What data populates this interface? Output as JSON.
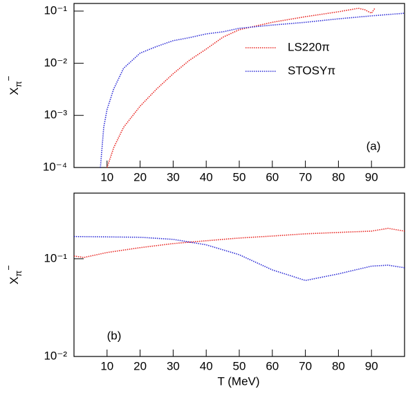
{
  "chart_data": [
    {
      "type": "line",
      "panel_label": "(a)",
      "log_y": true,
      "y_label": {
        "base": "X",
        "sub": "π",
        "sup": "−"
      },
      "xlim": [
        0,
        100
      ],
      "xticks": [
        10,
        20,
        30,
        40,
        50,
        60,
        70,
        80,
        90
      ],
      "ylim": [
        0.0001,
        0.14
      ],
      "yticks": [
        {
          "value": 0.1,
          "label": "10⁻¹"
        },
        {
          "value": 0.01,
          "label": "10⁻²"
        },
        {
          "value": 0.001,
          "label": "10⁻³"
        },
        {
          "value": 0.0001,
          "label": "10⁻⁴"
        }
      ],
      "legend": "upper right",
      "series": [
        {
          "name": "LS220π",
          "color": "#e8231f",
          "x": [
            10,
            12,
            15,
            20,
            25,
            30,
            35,
            40,
            45,
            50,
            60,
            70,
            80,
            86,
            88,
            90,
            91
          ],
          "values": [
            0.0001,
            0.00024,
            0.00059,
            0.0015,
            0.0032,
            0.0063,
            0.0115,
            0.0187,
            0.0314,
            0.044,
            0.061,
            0.078,
            0.097,
            0.113,
            0.106,
            0.091,
            0.113
          ]
        },
        {
          "name": "STOSYπ",
          "color": "#2a2ad6",
          "x": [
            8,
            9,
            10,
            12,
            15,
            20,
            25,
            30,
            35,
            40,
            45,
            50,
            60,
            70,
            80,
            90,
            100
          ],
          "values": [
            0.0001,
            0.00059,
            0.0013,
            0.0032,
            0.008,
            0.0156,
            0.021,
            0.027,
            0.031,
            0.0365,
            0.04,
            0.0467,
            0.054,
            0.061,
            0.071,
            0.081,
            0.091
          ]
        }
      ]
    },
    {
      "type": "line",
      "panel_label": "(b)",
      "log_y": true,
      "x_label": "T (MeV)",
      "y_label": {
        "base": "X",
        "sub": "π",
        "sup": "−"
      },
      "xlim": [
        0,
        100
      ],
      "xticks": [
        10,
        20,
        30,
        40,
        50,
        60,
        70,
        80,
        90
      ],
      "ylim": [
        0.01,
        0.47
      ],
      "yticks": [
        {
          "value": 0.1,
          "label": "10⁻¹"
        },
        {
          "value": 0.01,
          "label": "10⁻²"
        }
      ],
      "series": [
        {
          "name": "LS220π",
          "color": "#e8231f",
          "x": [
            0,
            3,
            10,
            20,
            30,
            40,
            50,
            60,
            70,
            80,
            90,
            95,
            100
          ],
          "values": [
            0.1067,
            0.103,
            0.116,
            0.13,
            0.143,
            0.153,
            0.163,
            0.171,
            0.18,
            0.186,
            0.192,
            0.205,
            0.192
          ]
        },
        {
          "name": "STOSYπ",
          "color": "#2a2ad6",
          "x": [
            0,
            20,
            30,
            40,
            50,
            60,
            70,
            80,
            90,
            95,
            100
          ],
          "values": [
            0.169,
            0.166,
            0.158,
            0.139,
            0.11,
            0.077,
            0.06,
            0.07,
            0.084,
            0.086,
            0.081
          ]
        }
      ]
    }
  ]
}
